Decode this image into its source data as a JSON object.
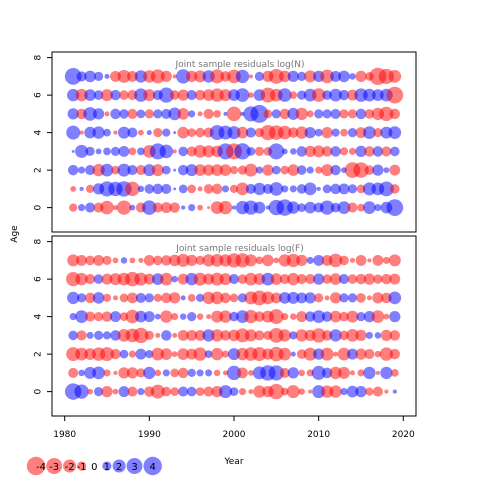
{
  "colors": {
    "positive": "#0000ff",
    "negative": "#ff0000",
    "title": "#777777"
  },
  "chart_data": {
    "type": "scatter",
    "style": "bubble",
    "xlabel": "Year",
    "ylabel": "Age",
    "xlim": [
      1978.5,
      2021.5
    ],
    "ylim": [
      -1.3,
      8.3
    ],
    "xticks": [
      "1980",
      "1990",
      "2000",
      "2010",
      "2020"
    ],
    "yticks": [
      "0",
      "2",
      "4",
      "6",
      "8"
    ],
    "years": [
      1981,
      2019
    ],
    "ages": [
      0,
      7
    ],
    "panels": [
      {
        "title": "Joint sample residuals log(N)",
        "residuals": [
          [
            -0.8,
            0.6,
            1.2,
            -1.2,
            -2.2,
            -0.3,
            -2.4,
            0.4,
            -1.2,
            2.5,
            -1.2,
            -1.4,
            -1.3,
            0.2,
            0.6,
            -0.4,
            -0.1,
            -1.9,
            -2.1,
            0.2,
            2.1,
            2.4,
            1.7,
            0.2,
            2.8,
            3.2,
            1.8,
            0.9,
            1.6,
            1.2,
            2.4,
            1.1,
            1.9,
            -1.2,
            -0.7,
            1.9,
            0.6,
            1.6,
            3.3
          ],
          [
            -0.4,
            0.2,
            -0.8,
            1.5,
            2.7,
            2.4,
            2.8,
            -2.5,
            0.5,
            1.1,
            1.3,
            1.2,
            0.1,
            0.9,
            -0.9,
            -0.3,
            -1.1,
            -1.3,
            0.6,
            -0.8,
            -1.9,
            1.2,
            1.8,
            1.2,
            2.2,
            0.6,
            0.6,
            1.1,
            1.9,
            0.2,
            0.9,
            1.3,
            1.4,
            1.0,
            -0.9,
            2.0,
            1.9,
            2.6,
            -1.1
          ],
          [
            1.3,
            0.6,
            1.2,
            -1.8,
            1.9,
            -0.9,
            2.0,
            1.2,
            -1.2,
            1.7,
            -1.7,
            0.9,
            0.1,
            1.3,
            1.7,
            -1.6,
            -1.5,
            -1.6,
            -1.6,
            -0.8,
            -1.0,
            -2.0,
            0.6,
            -1.5,
            0.9,
            -0.9,
            -1.6,
            1.1,
            0.6,
            -0.6,
            -1.7,
            1.3,
            0.4,
            -2.9,
            -2.8,
            -1.1,
            1.5,
            0.4,
            -1.4
          ],
          [
            0.1,
            2.0,
            1.0,
            0.4,
            0.7,
            1.0,
            1.4,
            -0.7,
            0.7,
            -1.9,
            3.0,
            2.2,
            -0.2,
            1.1,
            -1.2,
            -1.9,
            -1.7,
            -1.6,
            3.0,
            -3.0,
            3.1,
            0.9,
            -1.0,
            -0.9,
            3.0,
            0.4,
            0.5,
            1.3,
            -1.5,
            -1.7,
            -1.3,
            1.3,
            -0.8,
            -0.6,
            1.5,
            -1.3,
            1.3,
            -1.2,
            1.1
          ],
          [
            2.3,
            -0.2,
            1.6,
            1.8,
            0.7,
            -0.2,
            1.7,
            1.2,
            -0.4,
            0.3,
            -1.0,
            0.8,
            0.1,
            -1.6,
            -0.9,
            -1.1,
            -1.2,
            2.6,
            2.3,
            2.0,
            -1.6,
            1.2,
            -1.0,
            -2.7,
            -2.5,
            -2.2,
            -1.3,
            -1.8,
            1.5,
            0.7,
            -1.5,
            0.8,
            -0.7,
            1.0,
            -1.4,
            1.9,
            -1.0,
            1.7,
            1.9
          ],
          [
            1.5,
            -1.3,
            2.2,
            1.5,
            -0.3,
            1.3,
            1.1,
            -1.2,
            0.9,
            -1.0,
            1.0,
            1.2,
            1.9,
            -1.6,
            0.6,
            -0.3,
            -1.2,
            -0.7,
            0.2,
            -2.5,
            0.2,
            2.7,
            3.8,
            -0.9,
            1.0,
            -1.3,
            1.7,
            -1.8,
            -0.6,
            1.0,
            1.0,
            1.2,
            -1.0,
            -1.0,
            1.3,
            -1.1,
            -1.8,
            -2.4,
            -1.3
          ],
          [
            1.8,
            -1.8,
            1.6,
            1.1,
            -1.7,
            1.3,
            -1.1,
            -1.2,
            2.1,
            -1.7,
            1.2,
            2.7,
            -1.1,
            -1.5,
            1.2,
            -1.3,
            -1.6,
            -2.1,
            -1.7,
            1.6,
            2.2,
            -0.4,
            1.6,
            -2.6,
            -1.9,
            2.2,
            -0.7,
            1.0,
            1.9,
            -2.2,
            1.1,
            1.9,
            1.3,
            -1.4,
            2.1,
            1.9,
            1.6,
            1.9,
            -3.3
          ],
          [
            3.3,
            1.2,
            1.6,
            1.0,
            0.3,
            -1.4,
            -2.0,
            -1.4,
            1.8,
            -1.8,
            -2.3,
            -1.5,
            -0.2,
            2.4,
            -1.5,
            -1.7,
            1.8,
            -2.3,
            -1.3,
            -2.2,
            2.1,
            -0.2,
            1.0,
            -1.5,
            -2.6,
            -1.6,
            1.5,
            1.0,
            -1.7,
            1.5,
            -2.2,
            1.4,
            1.6,
            0.5,
            -1.5,
            -0.9,
            -3.5,
            -2.7,
            -1.9
          ]
        ]
      },
      {
        "title": "Joint sample residuals log(F)",
        "residuals": [
          [
            3.2,
            2.4,
            -0.4,
            1.0,
            -1.5,
            -0.4,
            1.4,
            -1.2,
            0.6,
            -1.3,
            -2.3,
            -1.1,
            -0.9,
            1.2,
            1.1,
            -0.9,
            -1.2,
            -1.5,
            2.0,
            0.9,
            -0.6,
            -0.3,
            -1.8,
            -1.5,
            -2.8,
            -0.7,
            -2.0,
            -0.5,
            -0.2,
            2.0,
            -1.8,
            -1.8,
            0.6,
            1.6,
            1.5,
            -0.8,
            -1.2,
            -0.2,
            0.2
          ],
          [
            -1.2,
            0.5,
            1.7,
            1.9,
            -0.6,
            -0.2,
            -1.5,
            -1.5,
            -1.0,
            1.8,
            -0.5,
            0.6,
            -0.9,
            -1.3,
            0.8,
            0.6,
            0.6,
            -0.5,
            -0.3,
            2.4,
            -1.4,
            -0.4,
            2.0,
            2.8,
            2.7,
            -1.2,
            1.5,
            -0.5,
            -0.6,
            2.3,
            1.3,
            -1.8,
            -1.7,
            -0.3,
            -0.6,
            1.8,
            -0.2,
            1.8,
            -0.7
          ],
          [
            -2.3,
            -1.9,
            -1.6,
            -2.1,
            -2.3,
            -1.3,
            0.9,
            -0.6,
            1.4,
            0.8,
            -1.9,
            -1.6,
            -0.4,
            -1.6,
            -1.4,
            -2.1,
            0.7,
            -1.8,
            -0.6,
            1.7,
            -1.8,
            -2.2,
            -2.3,
            -1.5,
            -2.5,
            -1.9,
            0.3,
            -1.1,
            -2.0,
            1.5,
            -2.0,
            -0.3,
            -1.9,
            1.4,
            -1.5,
            -1.2,
            -0.5,
            -2.1,
            -1.3
          ],
          [
            1.1,
            -1.2,
            0.6,
            1.0,
            0.8,
            1.3,
            -1.9,
            -2.2,
            -2.8,
            -1.0,
            -0.3,
            1.3,
            -0.3,
            -1.4,
            -1.4,
            -1.4,
            1.8,
            -1.8,
            -1.3,
            -1.6,
            -2.3,
            -1.7,
            -1.2,
            -1.0,
            -2.6,
            -1.8,
            0.8,
            -1.8,
            -1.5,
            -2.4,
            -1.3,
            1.8,
            -1.1,
            -1.9,
            -1.5,
            0.6,
            0.5,
            -1.5,
            -1.3
          ],
          [
            0.6,
            1.9,
            -1.2,
            -1.0,
            -1.3,
            1.4,
            -0.9,
            -2.2,
            1.6,
            1.4,
            0.4,
            -1.8,
            -0.6,
            0.5,
            1.0,
            -0.5,
            -0.3,
            -1.7,
            -1.8,
            1.1,
            1.9,
            -2.1,
            -1.3,
            -1.7,
            -2.6,
            -0.6,
            -0.5,
            -1.4,
            1.3,
            1.9,
            1.3,
            -1.6,
            -1.1,
            -1.7,
            1.0,
            1.5,
            -1.9,
            -0.4,
            1.5
          ],
          [
            1.8,
            1.0,
            -1.3,
            1.6,
            -0.8,
            -0.3,
            -0.9,
            -1.4,
            1.2,
            1.0,
            -0.8,
            -1.3,
            -1.5,
            0.3,
            -0.7,
            0.8,
            -1.8,
            -1.9,
            -1.3,
            -0.9,
            1.0,
            -2.0,
            -2.6,
            -1.9,
            -1.4,
            1.6,
            1.7,
            1.4,
            1.5,
            -1.0,
            -0.3,
            -1.5,
            1.0,
            1.0,
            -1.1,
            -0.3,
            -1.5,
            -1.3,
            1.9
          ],
          [
            -2.4,
            -1.8,
            -1.2,
            1.1,
            -1.4,
            -1.7,
            -1.9,
            -2.5,
            -2.0,
            -1.4,
            1.6,
            -1.9,
            0.5,
            -1.4,
            1.8,
            -2.0,
            -1.5,
            -2.0,
            -1.7,
            1.2,
            -1.1,
            -1.9,
            -1.6,
            1.9,
            -1.6,
            -1.2,
            -1.8,
            -1.2,
            -1.2,
            1.5,
            -1.1,
            -1.6,
            1.2,
            -1.1,
            -1.3,
            -1.5,
            -1.0,
            -1.3,
            -1.4
          ],
          [
            -1.7,
            -1.4,
            -1.1,
            -1.4,
            -1.0,
            -0.4,
            0.5,
            -0.4,
            -0.3,
            -1.4,
            -1.1,
            -1.3,
            -1.6,
            -2.0,
            -1.5,
            -1.0,
            -1.8,
            -1.9,
            -1.8,
            -2.4,
            -2.4,
            -1.7,
            -0.7,
            -1.6,
            -0.4,
            -1.8,
            -2.1,
            -1.5,
            0.6,
            1.4,
            -1.4,
            -2.2,
            -1.1,
            -0.3,
            -1.4,
            -0.2,
            -1.4,
            -0.6,
            -1.7
          ]
        ]
      }
    ],
    "legend": {
      "placement": "bottom-left",
      "values": [
        -4,
        -3,
        -2,
        -1,
        0,
        1,
        2,
        3,
        4
      ],
      "labels": [
        "-4",
        "-3",
        "-2",
        "-1",
        "0",
        "1",
        "2",
        "3",
        "4"
      ]
    }
  }
}
